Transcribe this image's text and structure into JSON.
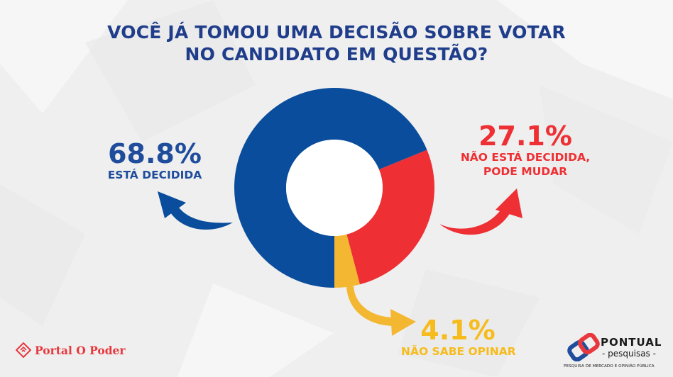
{
  "title_lines": [
    "VOCÊ JÁ TOMOU UMA DECISÃO SOBRE VOTAR",
    "NO CANDIDATO EM QUESTÃO?"
  ],
  "chart_data": {
    "type": "pie",
    "title": "VOCÊ JÁ TOMOU UMA DECISÃO SOBRE VOTAR NO CANDIDATO EM QUESTÃO?",
    "categories": [
      "ESTÁ DECIDIDA",
      "NÃO ESTÁ DECIDIDA, PODE MUDAR",
      "NÃO SABE OPINAR"
    ],
    "values": [
      68.8,
      27.1,
      4.1
    ],
    "value_labels": [
      "68.8%",
      "27.1%",
      "4.1%"
    ],
    "caption_lines": [
      [
        "ESTÁ DECIDIDA"
      ],
      [
        "NÃO ESTÁ DECIDIDA,",
        "PODE MUDAR"
      ],
      [
        "NÃO SABE OPINAR"
      ]
    ],
    "colors": [
      "#0a4d9c",
      "#ee2f33",
      "#f4b731"
    ],
    "donut": true
  },
  "logos": {
    "left": "Portal O Poder",
    "right_name": "PONTUAL",
    "right_sub": "- pesquisas -",
    "right_tag": "PESQUISA DE MERCADO E OPINIÃO PÚBLICA"
  }
}
